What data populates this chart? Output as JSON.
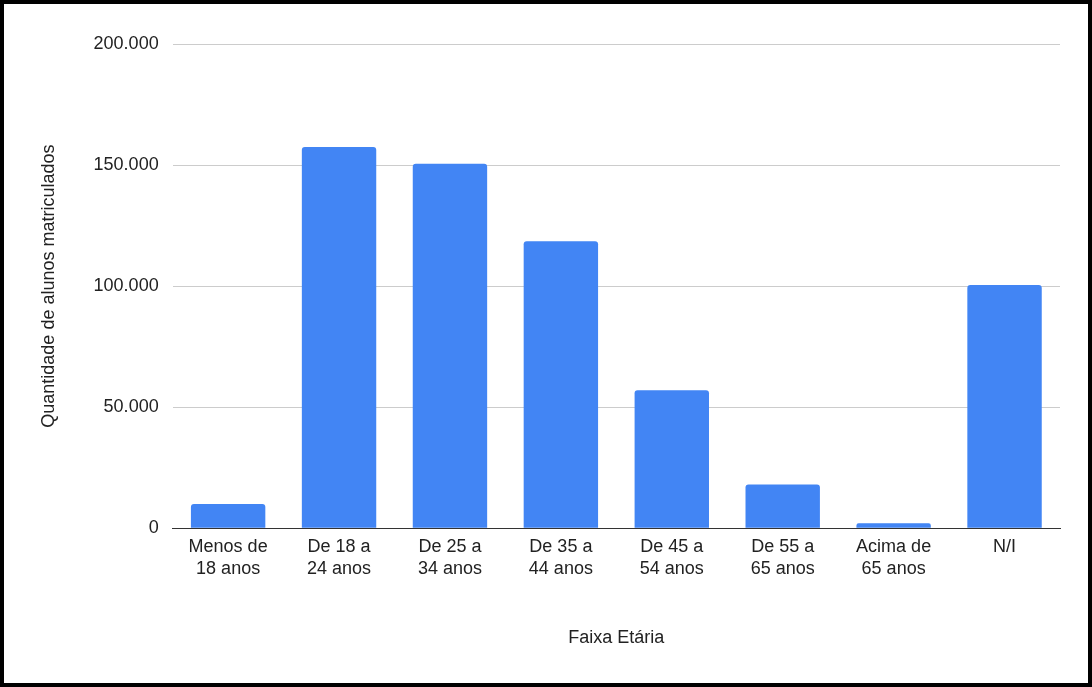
{
  "chart_data": {
    "type": "bar",
    "xlabel": "Faixa Etária",
    "ylabel": "Quantidade de alunos matriculados",
    "categories": [
      "Menos de 18 anos",
      "De 18 a 24 anos",
      "De 25 a 34 anos",
      "De 35 a 44 anos",
      "De 45 a 54 anos",
      "De 55 a 65 anos",
      "Acima de 65 anos",
      "N/I"
    ],
    "values": [
      10000,
      157500,
      150500,
      118500,
      57000,
      18000,
      2000,
      100500
    ],
    "color": "#4285f4",
    "ylim": [
      0,
      200000
    ],
    "yticks": [
      0,
      {
        "value": 50000,
        "label": "50.000"
      },
      {
        "value": 100000,
        "label": "100.000"
      },
      {
        "value": 150000,
        "label": "150.000"
      },
      {
        "value": 200000,
        "label": "200.000"
      }
    ],
    "grid": "y",
    "legend": false
  }
}
